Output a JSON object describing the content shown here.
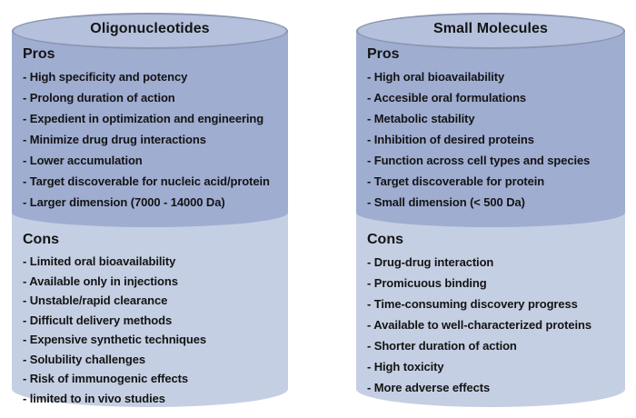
{
  "colors": {
    "ellipse_fill": "#b4c0dc",
    "ellipse_border": "#8b96b1",
    "pros_fill": "#9fadd1",
    "cons_fill": "#c5cfe3",
    "text": "#141414",
    "page_bg": "#ffffff"
  },
  "columns": [
    {
      "title": "Oligonucleotides",
      "pros": {
        "heading": "Pros",
        "items": [
          "High specificity and potency",
          "Prolong duration of action",
          "Expedient in optimization and engineering",
          "Minimize drug drug interactions",
          "Lower accumulation",
          "Target discoverable for nucleic acid/protein",
          "Larger dimension (7000 - 14000 Da)"
        ]
      },
      "cons": {
        "heading": "Cons",
        "items": [
          "Limited oral bioavailability",
          "Available only in injections",
          "Unstable/rapid clearance",
          "Difficult delivery methods",
          "Expensive synthetic techniques",
          "Solubility challenges",
          "Risk of immunogenic effects",
          "limited to in vivo studies"
        ]
      }
    },
    {
      "title": "Small Molecules",
      "pros": {
        "heading": "Pros",
        "items": [
          "High oral bioavailability",
          "Accesible oral formulations",
          "Metabolic stability",
          "Inhibition of desired proteins",
          "Function across cell types and species",
          "Target discoverable for protein",
          "Small dimension (< 500 Da)"
        ]
      },
      "cons": {
        "heading": "Cons",
        "items": [
          "Drug-drug interaction",
          "Promicuous binding",
          "Time-consuming discovery progress",
          "Available to well-characterized proteins",
          "Shorter duration of action",
          "High toxicity",
          "More adverse effects"
        ]
      }
    }
  ]
}
